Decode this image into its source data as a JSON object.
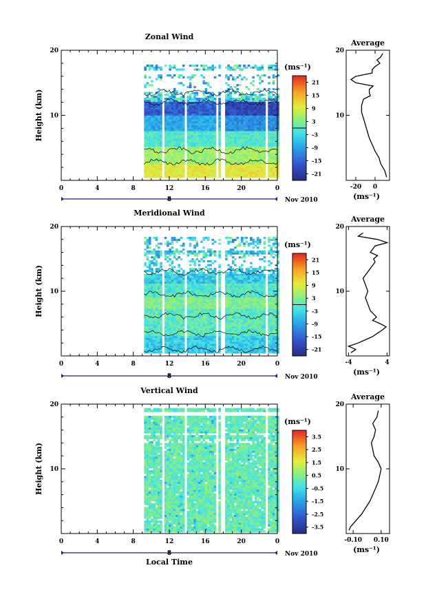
{
  "chart_data": [
    {
      "type": "heatmap",
      "title": "Zonal Wind",
      "ylabel": "Height (km)",
      "xlim": [
        0,
        24
      ],
      "ylim": [
        0,
        20
      ],
      "xticks": [
        "0",
        "4",
        "8",
        "12",
        "16",
        "20",
        "0"
      ],
      "yticks": [
        "10",
        "20"
      ],
      "date_label": "Nov 2010",
      "date_marker": "8",
      "colorbar_unit": "(ms⁻¹)",
      "colorbar_ticks": [
        "21",
        "15",
        "9",
        "3",
        "-3",
        "-9",
        "-15",
        "-21"
      ],
      "data_time_range": [
        9.2,
        24
      ],
      "data_height_range": [
        0.4,
        17.8
      ],
      "gaps_hours": [
        11.0,
        13.5,
        17.0,
        17.6,
        22.5
      ],
      "profile": {
        "title": "Average",
        "xticks": [
          "-20",
          "0"
        ],
        "xlim": [
          -30,
          15
        ],
        "xlabel": "(ms⁻¹)",
        "yticks": [
          "10",
          "20"
        ],
        "heights": [
          0.5,
          1.5,
          2.5,
          3.5,
          4.5,
          5.5,
          6.5,
          7.5,
          8.5,
          9.5,
          10.5,
          11.5,
          12.5,
          13.0,
          13.5,
          14.0,
          14.5,
          15.0,
          15.5,
          16.0,
          16.5,
          17.0,
          17.5,
          18.0,
          18.5,
          19.0,
          19.5
        ],
        "values": [
          12,
          10,
          6,
          4,
          0,
          -3,
          -6,
          -8,
          -10,
          -12,
          -14,
          -14,
          -12,
          -5,
          -6,
          -6,
          -2,
          -20,
          -25,
          -20,
          -3,
          -3,
          0,
          5,
          2,
          6,
          8
        ]
      }
    },
    {
      "type": "heatmap",
      "title": "Meridional Wind",
      "ylabel": "Height (km)",
      "xlim": [
        0,
        24
      ],
      "ylim": [
        0,
        20
      ],
      "xticks": [
        "0",
        "4",
        "8",
        "12",
        "16",
        "20",
        "0"
      ],
      "yticks": [
        "10",
        "20"
      ],
      "date_label": "Nov 2010",
      "date_marker": "8",
      "colorbar_unit": "(ms⁻¹)",
      "colorbar_ticks": [
        "21",
        "15",
        "9",
        "3",
        "-3",
        "-9",
        "-15",
        "-21"
      ],
      "data_time_range": [
        9.2,
        24
      ],
      "data_height_range": [
        0.4,
        18.2
      ],
      "gaps_hours": [
        11.0,
        13.5,
        17.0,
        17.6,
        22.5
      ],
      "profile": {
        "title": "Average",
        "xticks": [
          "-4",
          "4"
        ],
        "xlim": [
          -4.5,
          4.5
        ],
        "xlabel": "(ms⁻¹)",
        "yticks": [
          "10",
          "20"
        ],
        "heights": [
          0.5,
          1.0,
          1.5,
          2.0,
          2.5,
          3.0,
          3.5,
          4.0,
          4.5,
          5.0,
          5.5,
          6.0,
          7.0,
          8.0,
          9.0,
          10.0,
          11.0,
          12.0,
          13.0,
          14.0,
          14.5,
          15.0,
          15.5,
          16.0,
          16.5,
          17.0,
          17.5,
          18.0,
          18.5,
          19.0
        ],
        "values": [
          -3.5,
          -2.5,
          -4,
          -2,
          -0.5,
          1,
          2,
          3,
          3.8,
          2.5,
          1,
          1.8,
          0.5,
          0,
          -0.5,
          0,
          -0.5,
          -1,
          0,
          1,
          1.5,
          1.2,
          2,
          0.5,
          1,
          1.5,
          4,
          2,
          -2,
          -1
        ]
      }
    },
    {
      "type": "heatmap",
      "title": "Vertical Wind",
      "ylabel": "Height (km)",
      "xlabel": "Local Time",
      "xlim": [
        0,
        24
      ],
      "ylim": [
        0,
        20
      ],
      "xticks": [
        "0",
        "4",
        "8",
        "12",
        "16",
        "20",
        "0"
      ],
      "yticks": [
        "10",
        "20"
      ],
      "date_label": "Nov 2010",
      "date_marker": "8",
      "colorbar_unit": "(ms⁻¹)",
      "colorbar_ticks": [
        "3.5",
        "2.5",
        "1.5",
        "0.5",
        "-0.5",
        "-1.5",
        "-2.5",
        "-3.5"
      ],
      "data_time_range": [
        9.2,
        24
      ],
      "data_height_range": [
        0.2,
        19.2
      ],
      "gaps_hours": [
        11.0,
        13.5,
        17.0,
        17.6,
        22.5
      ],
      "profile": {
        "title": "Average",
        "xticks": [
          "-0.10",
          "0.10"
        ],
        "xlim": [
          -0.15,
          0.16
        ],
        "xlabel": "(ms⁻¹)",
        "yticks": [
          "10",
          "20"
        ],
        "heights": [
          0.5,
          1.0,
          2.0,
          3.0,
          4.0,
          5.0,
          6.0,
          7.0,
          8.0,
          9.0,
          10.0,
          11.0,
          12.0,
          13.0,
          14.0,
          15.0,
          16.0,
          17.0,
          18.0,
          19.0
        ],
        "values": [
          -0.13,
          -0.12,
          -0.08,
          -0.04,
          -0.01,
          0.02,
          0.04,
          0.06,
          0.08,
          0.09,
          0.1,
          0.08,
          0.05,
          0.04,
          0.03,
          0.05,
          0.06,
          0.04,
          0.07,
          0.08
        ]
      }
    }
  ]
}
